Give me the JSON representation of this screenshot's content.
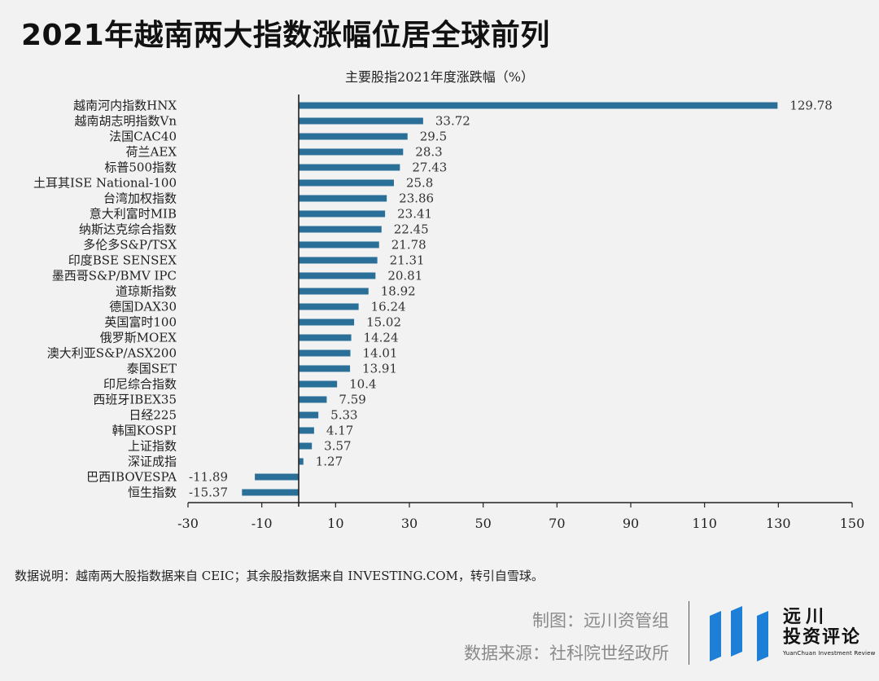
{
  "title": "2021年越南两大指数涨幅位居全球前列",
  "chart_data": {
    "type": "bar",
    "orientation": "horizontal",
    "title": "主要股指2021年度涨跌幅（%）",
    "categories": [
      "越南河内指数HNX",
      "越南胡志明指数Vn",
      "法国CAC40",
      "荷兰AEX",
      "标普500指数",
      "土耳其ISE National-100",
      "台湾加权指数",
      "意大利富时MIB",
      "纳斯达克综合指数",
      "多伦多S&P/TSX",
      "印度BSE SENSEX",
      "墨西哥S&P/BMV IPC",
      "道琼斯指数",
      "德国DAX30",
      "英国富时100",
      "俄罗斯MOEX",
      "澳大利亚S&P/ASX200",
      "泰国SET",
      "印尼综合指数",
      "西班牙IBEX35",
      "日经225",
      "韩国KOSPI",
      "上证指数",
      "深证成指",
      "巴西IBOVESPA",
      "恒生指数"
    ],
    "values": [
      129.78,
      33.72,
      29.5,
      28.3,
      27.43,
      25.8,
      23.86,
      23.41,
      22.45,
      21.78,
      21.31,
      20.81,
      18.92,
      16.24,
      15.02,
      14.24,
      14.01,
      13.91,
      10.4,
      7.59,
      5.33,
      4.17,
      3.57,
      1.27,
      -11.89,
      -15.37
    ],
    "value_labels": [
      "129.78",
      "33.72",
      "29.5",
      "28.3",
      "27.43",
      "25.8",
      "23.86",
      "23.41",
      "22.45",
      "21.78",
      "21.31",
      "20.81",
      "18.92",
      "16.24",
      "15.02",
      "14.24",
      "14.01",
      "13.91",
      "10.4",
      "7.59",
      "5.33",
      "4.17",
      "3.57",
      "1.27",
      "-11.89",
      "-15.37"
    ],
    "xlim": [
      -30,
      150
    ],
    "x_ticks": [
      -30,
      -10,
      10,
      30,
      50,
      70,
      90,
      110,
      130,
      150
    ],
    "x_tick_labels": [
      "-30",
      "-10",
      "10",
      "30",
      "50",
      "70",
      "90",
      "110",
      "130",
      "150"
    ],
    "bar_color": "#2a6f97",
    "xlabel": "",
    "ylabel": ""
  },
  "note": "数据说明：越南两大股指数据来自 CEIC；其余股指数据来自 INVESTING.COM，转引自雪球。",
  "credits": {
    "chart_by": "制图：远川资管组",
    "source": "数据来源：社科院世经政所"
  },
  "logo": {
    "name_line1": "远川",
    "name_line2": "投资评论",
    "english": "YuanChuan Investment Review",
    "color": "#1e7fd6"
  }
}
